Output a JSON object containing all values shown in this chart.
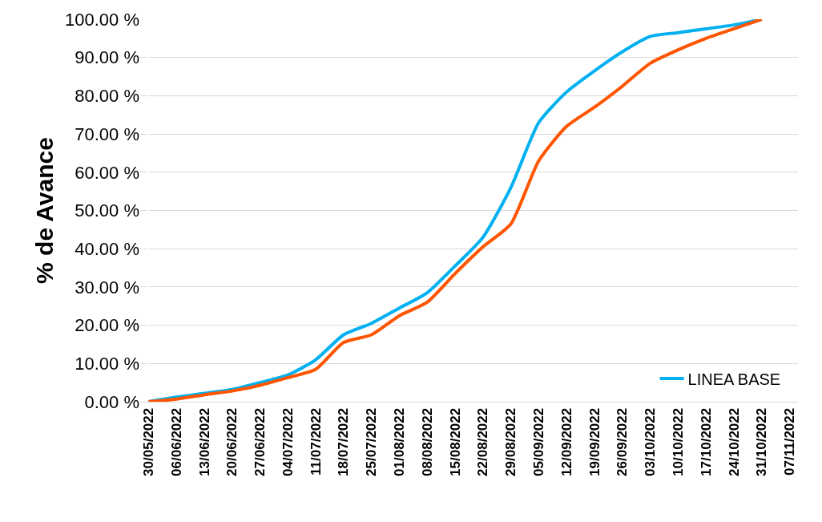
{
  "chart_data": {
    "type": "line",
    "ylabel": "% de Avance",
    "categories": [
      "30/05/2022",
      "06/06/2022",
      "13/06/2022",
      "20/06/2022",
      "27/06/2022",
      "04/07/2022",
      "11/07/2022",
      "18/07/2022",
      "25/07/2022",
      "01/08/2022",
      "08/08/2022",
      "15/08/2022",
      "22/08/2022",
      "29/08/2022",
      "05/09/2022",
      "12/09/2022",
      "19/09/2022",
      "26/09/2022",
      "03/10/2022",
      "10/10/2022",
      "17/10/2022",
      "24/10/2022",
      "31/10/2022",
      "07/11/2022"
    ],
    "series": [
      {
        "name": "LINEA BASE",
        "color": "#00b0f0",
        "values": [
          0,
          1.2,
          2.2,
          3.2,
          5,
          7,
          11,
          17.5,
          20.5,
          24.5,
          28.5,
          35.5,
          43,
          56,
          73,
          81,
          86.5,
          91.5,
          95.5,
          96.5,
          97.5,
          98.5,
          100,
          null
        ]
      },
      {
        "color": "#ff5500",
        "values": [
          0,
          0.7,
          1.8,
          2.8,
          4.3,
          6.3,
          8.5,
          15.5,
          17.5,
          22.5,
          26,
          33.5,
          40.5,
          46.5,
          63,
          72,
          77,
          82.5,
          88.5,
          92,
          95,
          97.5,
          100,
          null
        ]
      }
    ],
    "ylim": [
      0,
      100
    ],
    "yticks": [
      {
        "value": 0,
        "label": "0.00 %"
      },
      {
        "value": 10,
        "label": "10.00 %"
      },
      {
        "value": 20,
        "label": "20.00 %"
      },
      {
        "value": 30,
        "label": "30.00 %"
      },
      {
        "value": 40,
        "label": "40.00 %"
      },
      {
        "value": 50,
        "label": "50.00 %"
      },
      {
        "value": 60,
        "label": "60.00 %"
      },
      {
        "value": 70,
        "label": "70.00 %"
      },
      {
        "value": 80,
        "label": "80.00 %"
      },
      {
        "value": 90,
        "label": "90.00 %"
      },
      {
        "value": 100,
        "label": "100.00 %"
      }
    ],
    "grid": "y",
    "legend": "bottom right",
    "marker": "none",
    "line_style": "solid"
  }
}
